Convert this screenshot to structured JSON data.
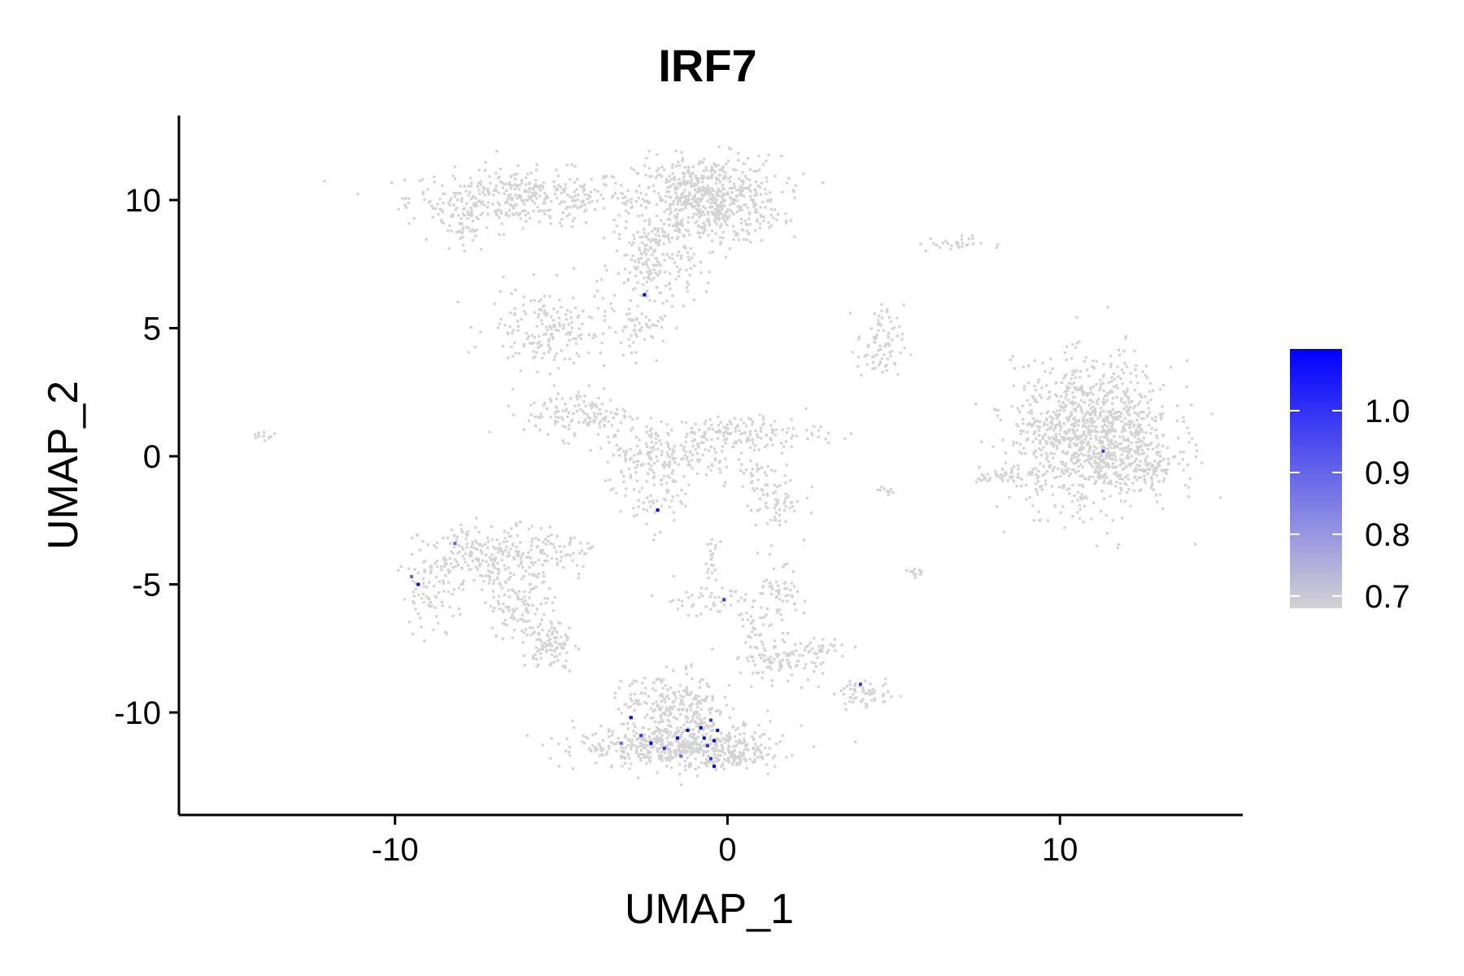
{
  "chart_data": {
    "type": "scatter",
    "title": "IRF7",
    "xlabel": "UMAP_1",
    "ylabel": "UMAP_2",
    "xlim": [
      -16.5,
      15.5
    ],
    "ylim": [
      -14,
      13.3
    ],
    "x_ticks": [
      -10,
      0,
      10
    ],
    "y_ticks": [
      -10,
      -5,
      0,
      5,
      10
    ],
    "grid": false,
    "colors": {
      "low": "#d3d3d3",
      "high": "#0000ff"
    },
    "legend": {
      "position": "right",
      "type": "colorbar",
      "min": 0.68,
      "max": 1.1,
      "ticks": [
        0.7,
        0.8,
        0.9,
        1.0
      ],
      "tick_labels": [
        "0.7",
        "0.8",
        "0.9",
        "1.0"
      ]
    },
    "clusters": [
      {
        "cx": -6.2,
        "cy": 10.1,
        "sx": 1.7,
        "sy": 0.55,
        "n": 380
      },
      {
        "cx": -8.0,
        "cy": 9.0,
        "sx": 0.4,
        "sy": 0.6,
        "n": 50
      },
      {
        "cx": -0.6,
        "cy": 10.0,
        "sx": 1.1,
        "sy": 0.85,
        "n": 650
      },
      {
        "cx": -2.2,
        "cy": 7.5,
        "sx": 0.6,
        "sy": 1.0,
        "n": 200
      },
      {
        "cx": -5.4,
        "cy": 5.0,
        "sx": 0.9,
        "sy": 0.8,
        "n": 180
      },
      {
        "cx": -2.8,
        "cy": 4.8,
        "sx": 0.4,
        "sy": 0.5,
        "n": 40
      },
      {
        "cx": 6.7,
        "cy": 8.3,
        "sx": 0.5,
        "sy": 0.15,
        "n": 30
      },
      {
        "cx": 4.6,
        "cy": 4.3,
        "sx": 0.35,
        "sy": 0.8,
        "n": 80
      },
      {
        "cx": -4.5,
        "cy": 1.7,
        "sx": 0.8,
        "sy": 0.5,
        "n": 130
      },
      {
        "cx": -1.8,
        "cy": 0.0,
        "sx": 1.0,
        "sy": 0.6,
        "n": 180
      },
      {
        "cx": 0.3,
        "cy": 0.9,
        "sx": 1.3,
        "sy": 0.35,
        "n": 160
      },
      {
        "cx": -2.3,
        "cy": -1.5,
        "sx": 0.5,
        "sy": 0.7,
        "n": 60
      },
      {
        "cx": 1.4,
        "cy": -2.0,
        "sx": 0.4,
        "sy": 0.5,
        "n": 50
      },
      {
        "cx": 0.9,
        "cy": -0.8,
        "sx": 0.5,
        "sy": 0.4,
        "n": 40
      },
      {
        "cx": 11.0,
        "cy": 0.8,
        "sx": 1.2,
        "sy": 1.4,
        "n": 1100
      },
      {
        "cx": 12.6,
        "cy": -0.5,
        "sx": 0.5,
        "sy": 0.3,
        "n": 60
      },
      {
        "cx": 8.3,
        "cy": -0.8,
        "sx": 0.4,
        "sy": 0.2,
        "n": 40
      },
      {
        "cx": -14.0,
        "cy": 0.8,
        "sx": 0.2,
        "sy": 0.08,
        "n": 12
      },
      {
        "cx": -7.0,
        "cy": -3.9,
        "sx": 1.1,
        "sy": 0.6,
        "n": 260
      },
      {
        "cx": -8.8,
        "cy": -5.3,
        "sx": 0.5,
        "sy": 0.7,
        "n": 80
      },
      {
        "cx": -6.2,
        "cy": -5.8,
        "sx": 0.5,
        "sy": 0.8,
        "n": 110
      },
      {
        "cx": -5.3,
        "cy": -7.4,
        "sx": 0.35,
        "sy": 0.45,
        "n": 90
      },
      {
        "cx": -5.0,
        "cy": -3.6,
        "sx": 0.5,
        "sy": 0.3,
        "n": 30
      },
      {
        "cx": -0.5,
        "cy": -5.6,
        "sx": 0.9,
        "sy": 0.3,
        "n": 50
      },
      {
        "cx": -0.5,
        "cy": -4.0,
        "sx": 0.12,
        "sy": 0.5,
        "n": 20
      },
      {
        "cx": 1.5,
        "cy": -5.5,
        "sx": 0.4,
        "sy": 0.6,
        "n": 60
      },
      {
        "cx": 1.6,
        "cy": -8.0,
        "sx": 0.6,
        "sy": 0.4,
        "n": 90
      },
      {
        "cx": 0.8,
        "cy": -7.0,
        "sx": 0.25,
        "sy": 0.6,
        "n": 40
      },
      {
        "cx": 3.0,
        "cy": -7.5,
        "sx": 0.4,
        "sy": 0.2,
        "n": 25
      },
      {
        "cx": -1.5,
        "cy": -11.3,
        "sx": 1.5,
        "sy": 0.45,
        "n": 480
      },
      {
        "cx": -1.3,
        "cy": -10.0,
        "sx": 0.7,
        "sy": 0.75,
        "n": 220
      },
      {
        "cx": -2.6,
        "cy": -9.5,
        "sx": 0.4,
        "sy": 0.5,
        "n": 40
      },
      {
        "cx": 0.3,
        "cy": -11.6,
        "sx": 0.5,
        "sy": 0.3,
        "n": 80
      },
      {
        "cx": 4.1,
        "cy": -9.3,
        "sx": 0.45,
        "sy": 0.25,
        "n": 60
      },
      {
        "cx": 5.7,
        "cy": -4.5,
        "sx": 0.15,
        "sy": 0.08,
        "n": 12
      },
      {
        "cx": 4.8,
        "cy": -1.4,
        "sx": 0.15,
        "sy": 0.08,
        "n": 10
      }
    ],
    "expressing_points": [
      {
        "x": -2.5,
        "y": 6.3,
        "value": 1.1
      },
      {
        "x": -2.1,
        "y": -2.1,
        "value": 1.1
      },
      {
        "x": 11.3,
        "y": 0.2,
        "value": 1.0
      },
      {
        "x": -8.2,
        "y": -3.4,
        "value": 0.9
      },
      {
        "x": -9.5,
        "y": -4.7,
        "value": 0.9
      },
      {
        "x": -9.3,
        "y": -5.0,
        "value": 1.1
      },
      {
        "x": -0.1,
        "y": -5.6,
        "value": 1.0
      },
      {
        "x": 4.0,
        "y": -8.9,
        "value": 1.0
      },
      {
        "x": -2.9,
        "y": -10.2,
        "value": 1.1
      },
      {
        "x": -3.2,
        "y": -11.2,
        "value": 0.9
      },
      {
        "x": -2.6,
        "y": -10.9,
        "value": 1.0
      },
      {
        "x": -2.3,
        "y": -11.2,
        "value": 1.1
      },
      {
        "x": -1.9,
        "y": -11.4,
        "value": 1.0
      },
      {
        "x": -1.5,
        "y": -11.0,
        "value": 1.1
      },
      {
        "x": -1.2,
        "y": -10.7,
        "value": 1.1
      },
      {
        "x": -1.4,
        "y": -11.7,
        "value": 0.9
      },
      {
        "x": -0.8,
        "y": -10.6,
        "value": 1.1
      },
      {
        "x": -0.5,
        "y": -10.3,
        "value": 1.0
      },
      {
        "x": -0.3,
        "y": -10.7,
        "value": 1.1
      },
      {
        "x": -0.6,
        "y": -11.3,
        "value": 1.0
      },
      {
        "x": -0.4,
        "y": -11.1,
        "value": 1.1
      },
      {
        "x": -0.7,
        "y": -11.0,
        "value": 1.1
      },
      {
        "x": -0.5,
        "y": -11.8,
        "value": 1.0
      },
      {
        "x": -0.4,
        "y": -12.1,
        "value": 1.1
      }
    ]
  }
}
